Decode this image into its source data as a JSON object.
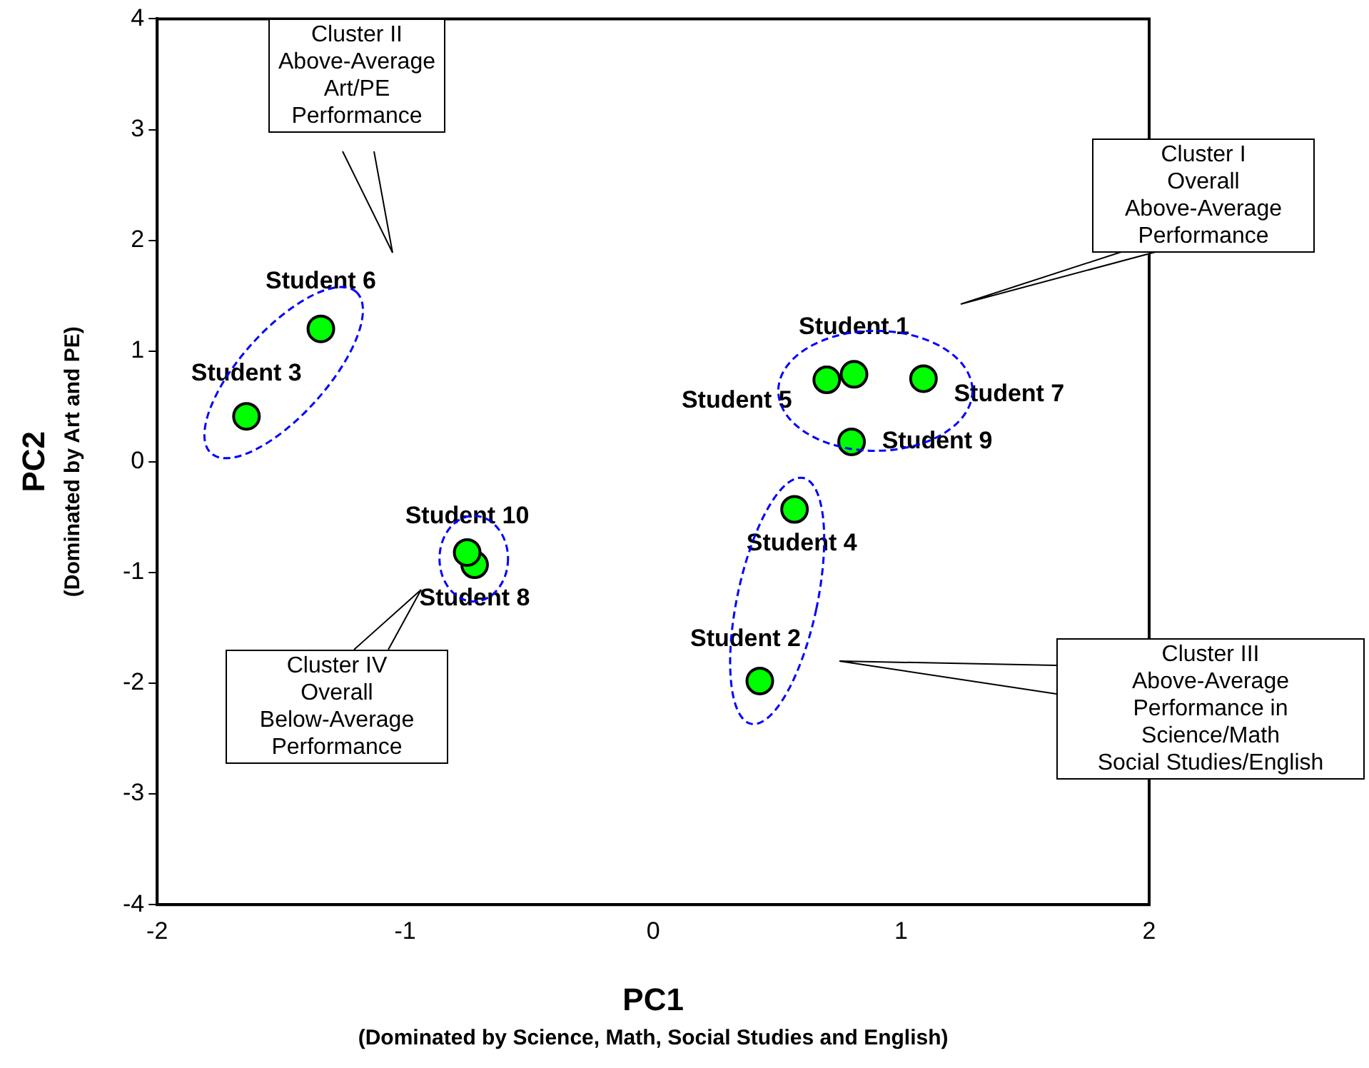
{
  "chart_data": {
    "type": "scatter",
    "xlabel": "PC1\n(Dominated by Science, Math, Social Studies and English)",
    "ylabel": "PC2\n(Dominated by Art and PE)",
    "xlim": [
      -2,
      2
    ],
    "xticks": [
      -2,
      -1,
      0,
      1,
      2
    ],
    "ylim": [
      -4,
      4
    ],
    "yticks": [
      -4,
      -3,
      -2,
      -1,
      0,
      1,
      2,
      3,
      4
    ],
    "grid": false,
    "legend": false,
    "marker": "circle",
    "series": [
      {
        "color": "#00ff00",
        "x": [
          0.81,
          0.43,
          -1.64,
          0.57,
          0.7,
          -1.34,
          1.09,
          -0.72,
          0.8,
          -0.75
        ],
        "values": [
          0.79,
          -1.98,
          0.41,
          -0.43,
          0.74,
          1.2,
          0.75,
          -0.93,
          0.18,
          -0.82
        ]
      }
    ],
    "annotations": [
      {
        "text": "Student 1",
        "x": 0.81,
        "y": 0.79
      },
      {
        "text": "Student 2",
        "x": 0.43,
        "y": -1.98
      },
      {
        "text": "Student 3",
        "x": -1.64,
        "y": 0.41
      },
      {
        "text": "Student 4",
        "x": 0.57,
        "y": -0.43
      },
      {
        "text": "Student 5",
        "x": 0.7,
        "y": 0.74
      },
      {
        "text": "Student 6",
        "x": -1.34,
        "y": 1.2
      },
      {
        "text": "Student 7",
        "x": 1.09,
        "y": 0.75
      },
      {
        "text": "Student 8",
        "x": -0.72,
        "y": -0.93
      },
      {
        "text": "Student 9",
        "x": 0.8,
        "y": 0.18
      },
      {
        "text": "Student 10",
        "x": -0.75,
        "y": -0.82
      },
      "Cluster I\nOverall\nAbove-Average\nPerformance",
      "Cluster II\nAbove-Average\nArt/PE\nPerformance",
      "Cluster III\nAbove-Average\nPerformance in\nScience/Math\nSocial Studies/English",
      "Cluster IV\nOverall\nBelow-Average\nPerformance"
    ]
  }
}
